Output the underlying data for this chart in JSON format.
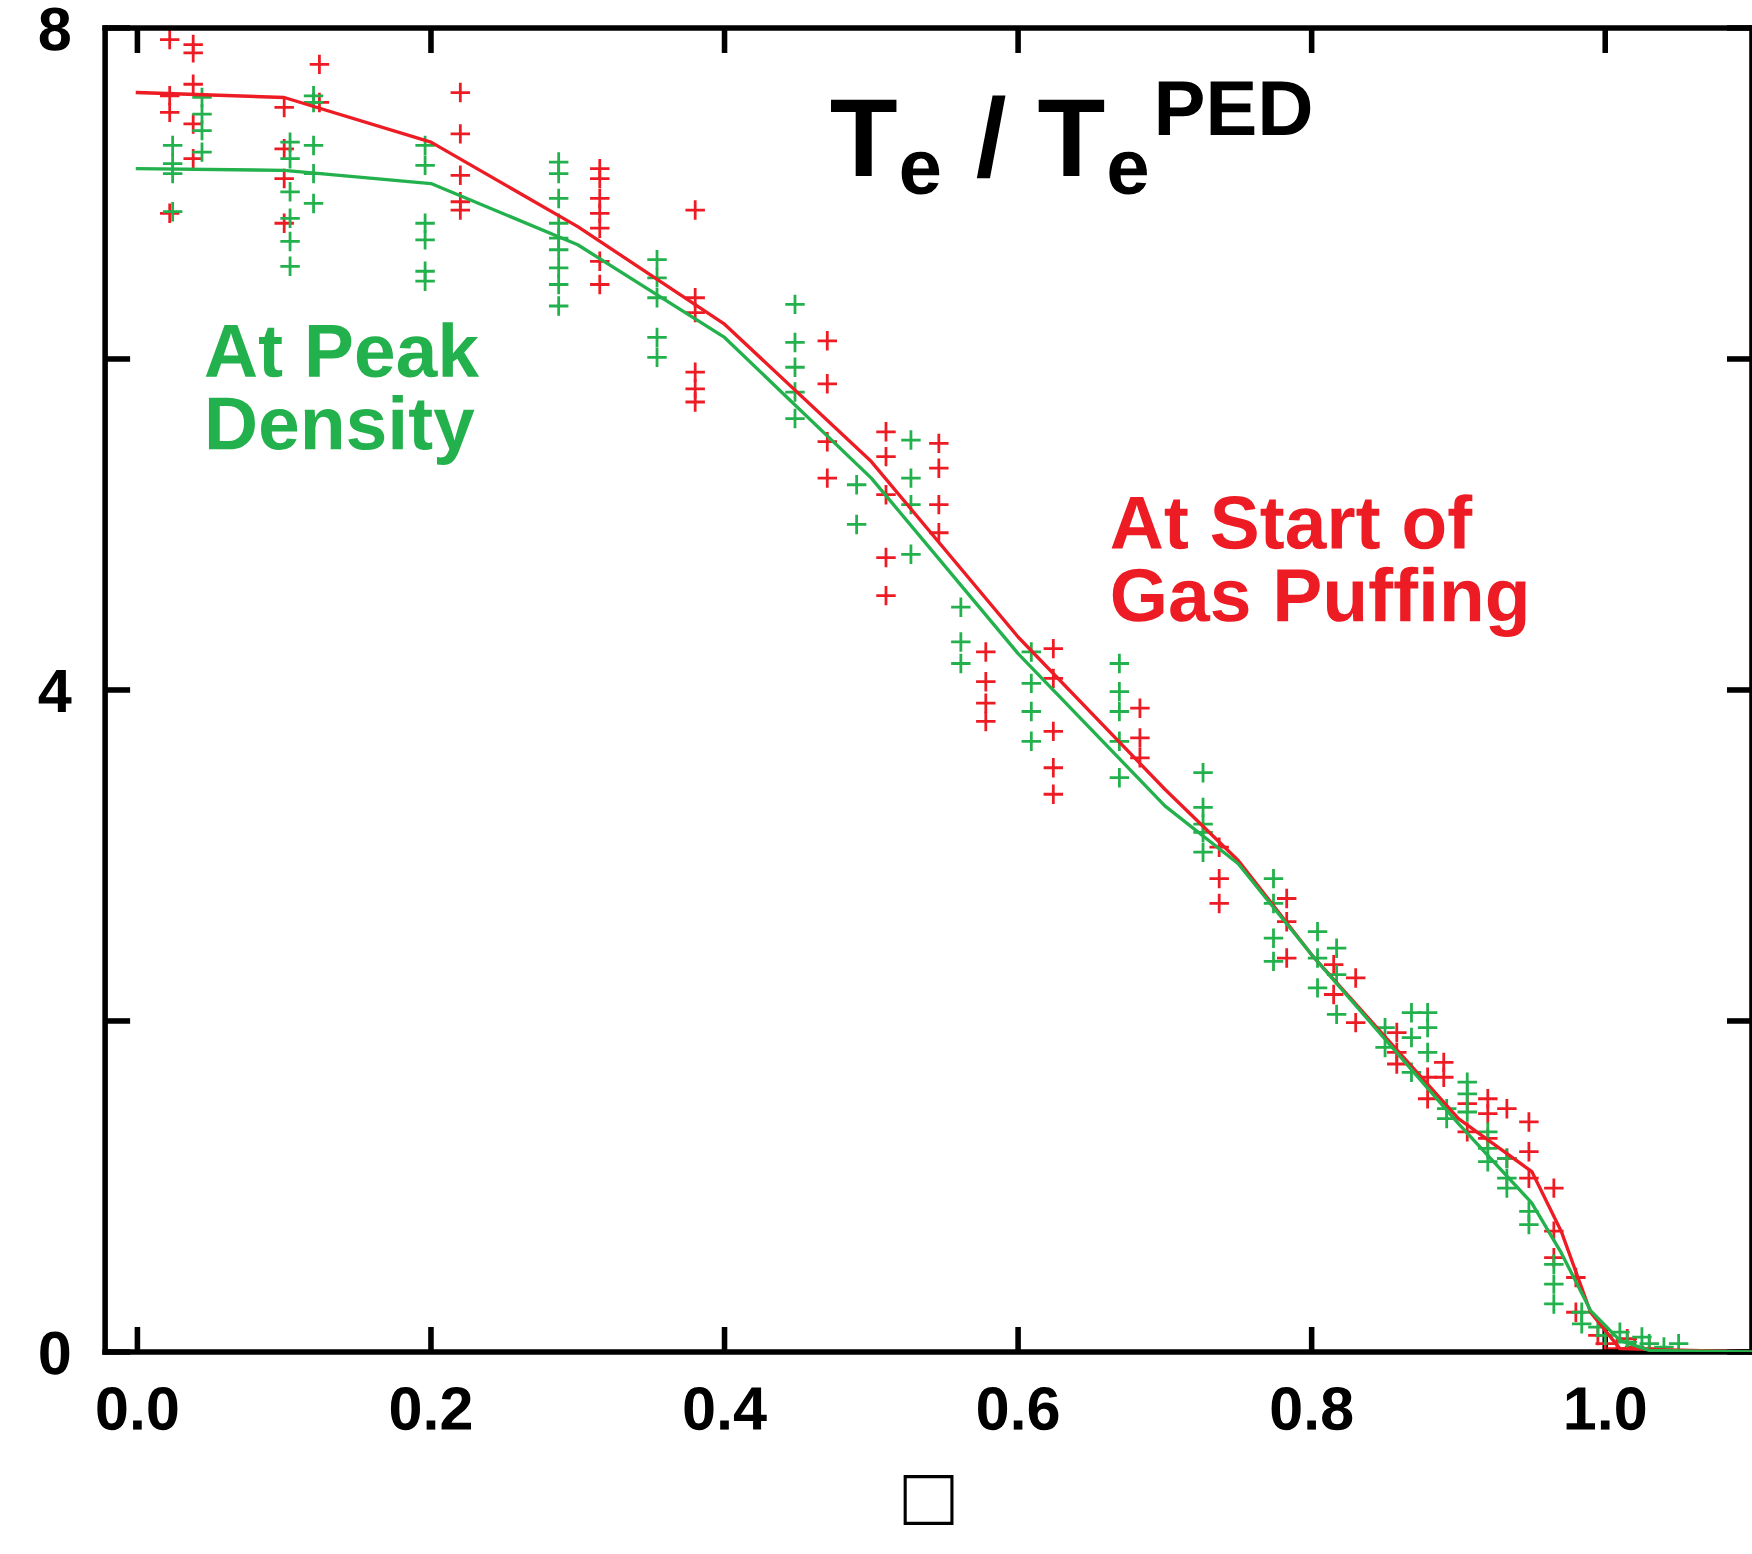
{
  "chart_data": {
    "type": "scatter",
    "title": "T$_{e}$ / T$_{e}$$^{PED}$",
    "xlabel": "□",
    "xlim": [
      -0.022,
      1.1
    ],
    "ylim": [
      0,
      8
    ],
    "xticks": [
      {
        "value": 0,
        "label": "0.0"
      },
      0.2,
      0.4,
      0.6,
      0.8,
      {
        "value": 1,
        "label": "1.0"
      }
    ],
    "yticks": [
      0,
      {
        "value": 2,
        "label": null
      },
      4,
      {
        "value": 6,
        "label": null
      },
      8
    ],
    "grid": false,
    "legend": false,
    "series": [
      {
        "name": "At Start of\nGas Puffing",
        "marker": "cross",
        "color": "#ed1c24",
        "x": [
          0.022,
          0.022,
          0.022,
          0.022,
          0.038,
          0.038,
          0.038,
          0.038,
          0.038,
          0.1,
          0.1,
          0.1,
          0.1,
          0.124,
          0.124,
          0.22,
          0.22,
          0.22,
          0.22,
          0.22,
          0.315,
          0.315,
          0.315,
          0.315,
          0.315,
          0.315,
          0.315,
          0.38,
          0.38,
          0.38,
          0.38,
          0.38,
          0.38,
          0.47,
          0.47,
          0.47,
          0.47,
          0.51,
          0.51,
          0.51,
          0.51,
          0.51,
          0.546,
          0.546,
          0.546,
          0.546,
          0.578,
          0.578,
          0.578,
          0.578,
          0.624,
          0.624,
          0.624,
          0.624,
          0.624,
          0.683,
          0.683,
          0.683,
          0.737,
          0.737,
          0.737,
          0.783,
          0.783,
          0.783,
          0.815,
          0.815,
          0.83,
          0.83,
          0.858,
          0.858,
          0.858,
          0.879,
          0.879,
          0.89,
          0.89,
          0.906,
          0.906,
          0.92,
          0.92,
          0.92,
          0.933,
          0.933,
          0.948,
          0.948,
          0.948,
          0.965,
          0.965,
          0.965,
          0.98,
          0.98,
          0.995,
          1.0,
          1.008,
          1.015,
          1.02,
          1.03
        ],
        "values": [
          7.93,
          7.59,
          7.49,
          6.88,
          7.9,
          7.85,
          7.66,
          7.42,
          7.21,
          7.52,
          7.27,
          7.09,
          6.82,
          7.78,
          7.55,
          7.61,
          7.36,
          7.11,
          6.95,
          6.9,
          7.15,
          7.09,
          6.97,
          6.88,
          6.79,
          6.59,
          6.45,
          6.9,
          6.37,
          6.28,
          5.92,
          5.82,
          5.74,
          6.11,
          5.85,
          5.5,
          5.28,
          5.56,
          5.41,
          5.18,
          4.8,
          4.57,
          5.49,
          5.34,
          5.12,
          4.95,
          4.23,
          4.05,
          3.92,
          3.81,
          4.25,
          4.07,
          3.75,
          3.53,
          3.37,
          3.89,
          3.71,
          3.59,
          3.05,
          2.86,
          2.71,
          2.74,
          2.6,
          2.38,
          2.34,
          2.16,
          2.26,
          1.99,
          1.93,
          1.81,
          1.74,
          1.66,
          1.53,
          1.75,
          1.66,
          1.5,
          1.33,
          1.53,
          1.44,
          1.29,
          1.47,
          1.17,
          1.39,
          1.21,
          1.05,
          0.99,
          0.73,
          0.57,
          0.45,
          0.24,
          0.1,
          0.05,
          0.02,
          0.08,
          0.03,
          0.02
        ]
      },
      {
        "name": "At Peak\nDensity",
        "marker": "cross",
        "color": "#22b14c",
        "x": [
          0.024,
          0.024,
          0.024,
          0.024,
          0.044,
          0.044,
          0.044,
          0.044,
          0.104,
          0.104,
          0.104,
          0.104,
          0.104,
          0.104,
          0.12,
          0.12,
          0.12,
          0.12,
          0.12,
          0.196,
          0.196,
          0.196,
          0.196,
          0.196,
          0.196,
          0.287,
          0.287,
          0.287,
          0.287,
          0.287,
          0.287,
          0.287,
          0.287,
          0.287,
          0.354,
          0.354,
          0.354,
          0.354,
          0.354,
          0.448,
          0.448,
          0.448,
          0.448,
          0.448,
          0.49,
          0.49,
          0.527,
          0.527,
          0.527,
          0.527,
          0.561,
          0.561,
          0.561,
          0.609,
          0.609,
          0.609,
          0.609,
          0.669,
          0.669,
          0.669,
          0.669,
          0.669,
          0.726,
          0.726,
          0.726,
          0.726,
          0.726,
          0.774,
          0.774,
          0.774,
          0.774,
          0.804,
          0.804,
          0.804,
          0.817,
          0.817,
          0.817,
          0.85,
          0.85,
          0.868,
          0.868,
          0.868,
          0.879,
          0.879,
          0.879,
          0.892,
          0.892,
          0.906,
          0.906,
          0.906,
          0.92,
          0.92,
          0.92,
          0.933,
          0.933,
          0.933,
          0.948,
          0.948,
          0.965,
          0.965,
          0.965,
          0.984,
          0.984,
          0.995,
          1.0,
          1.01,
          1.015,
          1.025,
          1.03,
          1.04,
          1.05
        ],
        "values": [
          7.29,
          7.18,
          7.12,
          6.89,
          7.58,
          7.48,
          7.38,
          7.25,
          7.31,
          7.21,
          7.01,
          6.85,
          6.71,
          6.56,
          7.59,
          7.55,
          7.29,
          7.12,
          6.94,
          7.29,
          7.17,
          6.82,
          6.72,
          6.53,
          6.47,
          7.19,
          7.12,
          6.97,
          6.82,
          6.73,
          6.66,
          6.55,
          6.45,
          6.32,
          6.6,
          6.49,
          6.37,
          6.13,
          6.01,
          6.33,
          6.1,
          5.95,
          5.8,
          5.64,
          5.24,
          5.0,
          5.51,
          5.28,
          5.12,
          4.82,
          4.5,
          4.29,
          4.16,
          4.23,
          4.04,
          3.87,
          3.69,
          4.16,
          3.99,
          3.87,
          3.69,
          3.47,
          3.5,
          3.29,
          3.14,
          3.02,
          3.19,
          2.86,
          2.71,
          2.5,
          2.36,
          2.54,
          2.38,
          2.2,
          2.44,
          2.28,
          2.04,
          1.96,
          1.84,
          2.05,
          1.9,
          1.69,
          2.05,
          1.96,
          1.81,
          1.47,
          1.41,
          1.63,
          1.56,
          1.45,
          1.33,
          1.23,
          1.15,
          1.17,
          1.05,
          0.99,
          0.85,
          0.77,
          0.53,
          0.41,
          0.29,
          0.24,
          0.17,
          0.15,
          0.1,
          0.12,
          0.06,
          0.09,
          0.05,
          0.03,
          0.05
        ]
      },
      {
        "type": "line",
        "marker": "none",
        "color": "#ed1c24",
        "x": [
          0,
          0.1,
          0.2,
          0.3,
          0.4,
          0.5,
          0.6,
          0.7,
          0.75,
          0.8,
          0.9,
          0.95,
          0.97,
          0.99,
          1.01,
          1.1
        ],
        "values": [
          7.61,
          7.58,
          7.31,
          6.8,
          6.21,
          5.38,
          4.32,
          3.4,
          2.97,
          2.4,
          1.41,
          1.09,
          0.73,
          0.24,
          0.02,
          0
        ]
      },
      {
        "type": "line",
        "marker": "none",
        "color": "#22b14c",
        "x": [
          0,
          0.1,
          0.2,
          0.3,
          0.4,
          0.5,
          0.6,
          0.7,
          0.75,
          0.8,
          0.9,
          0.95,
          0.97,
          0.99,
          1.01,
          1.03,
          1.1
        ],
        "values": [
          7.15,
          7.14,
          7.06,
          6.69,
          6.13,
          5.28,
          4.22,
          3.3,
          2.95,
          2.4,
          1.38,
          0.9,
          0.6,
          0.25,
          0.07,
          0.01,
          0
        ]
      }
    ]
  }
}
